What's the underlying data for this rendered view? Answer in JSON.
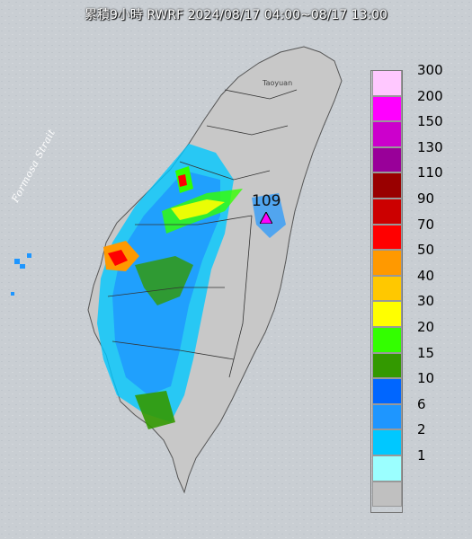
{
  "title": "累積9小時 RWRF 2024/08/17 04:00~08/17 13:00",
  "labels": {
    "strait": "Formosa Strait",
    "taoyuan": "Taoyuan",
    "max_value": "109"
  },
  "legend": [
    {
      "label": "300",
      "color": "#ffc8ff"
    },
    {
      "label": "200",
      "color": "#ff00ff"
    },
    {
      "label": "150",
      "color": "#cc00cc"
    },
    {
      "label": "130",
      "color": "#990099"
    },
    {
      "label": "110",
      "color": "#990000"
    },
    {
      "label": "90",
      "color": "#cc0000"
    },
    {
      "label": "70",
      "color": "#ff0000"
    },
    {
      "label": "50",
      "color": "#ff9900"
    },
    {
      "label": "40",
      "color": "#ffc800"
    },
    {
      "label": "30",
      "color": "#ffff00"
    },
    {
      "label": "20",
      "color": "#33ff00"
    },
    {
      "label": "15",
      "color": "#339900"
    },
    {
      "label": "10",
      "color": "#0066ff"
    },
    {
      "label": "6",
      "color": "#1e96ff"
    },
    {
      "label": "2",
      "color": "#00c8ff"
    },
    {
      "label": "1",
      "color": "#9bffff"
    },
    {
      "label": "",
      "color": "#c0c0c0"
    }
  ],
  "colors": {
    "sea": "#c9ced3",
    "land": "#c8c8c8",
    "marker": "#ff00ff"
  }
}
